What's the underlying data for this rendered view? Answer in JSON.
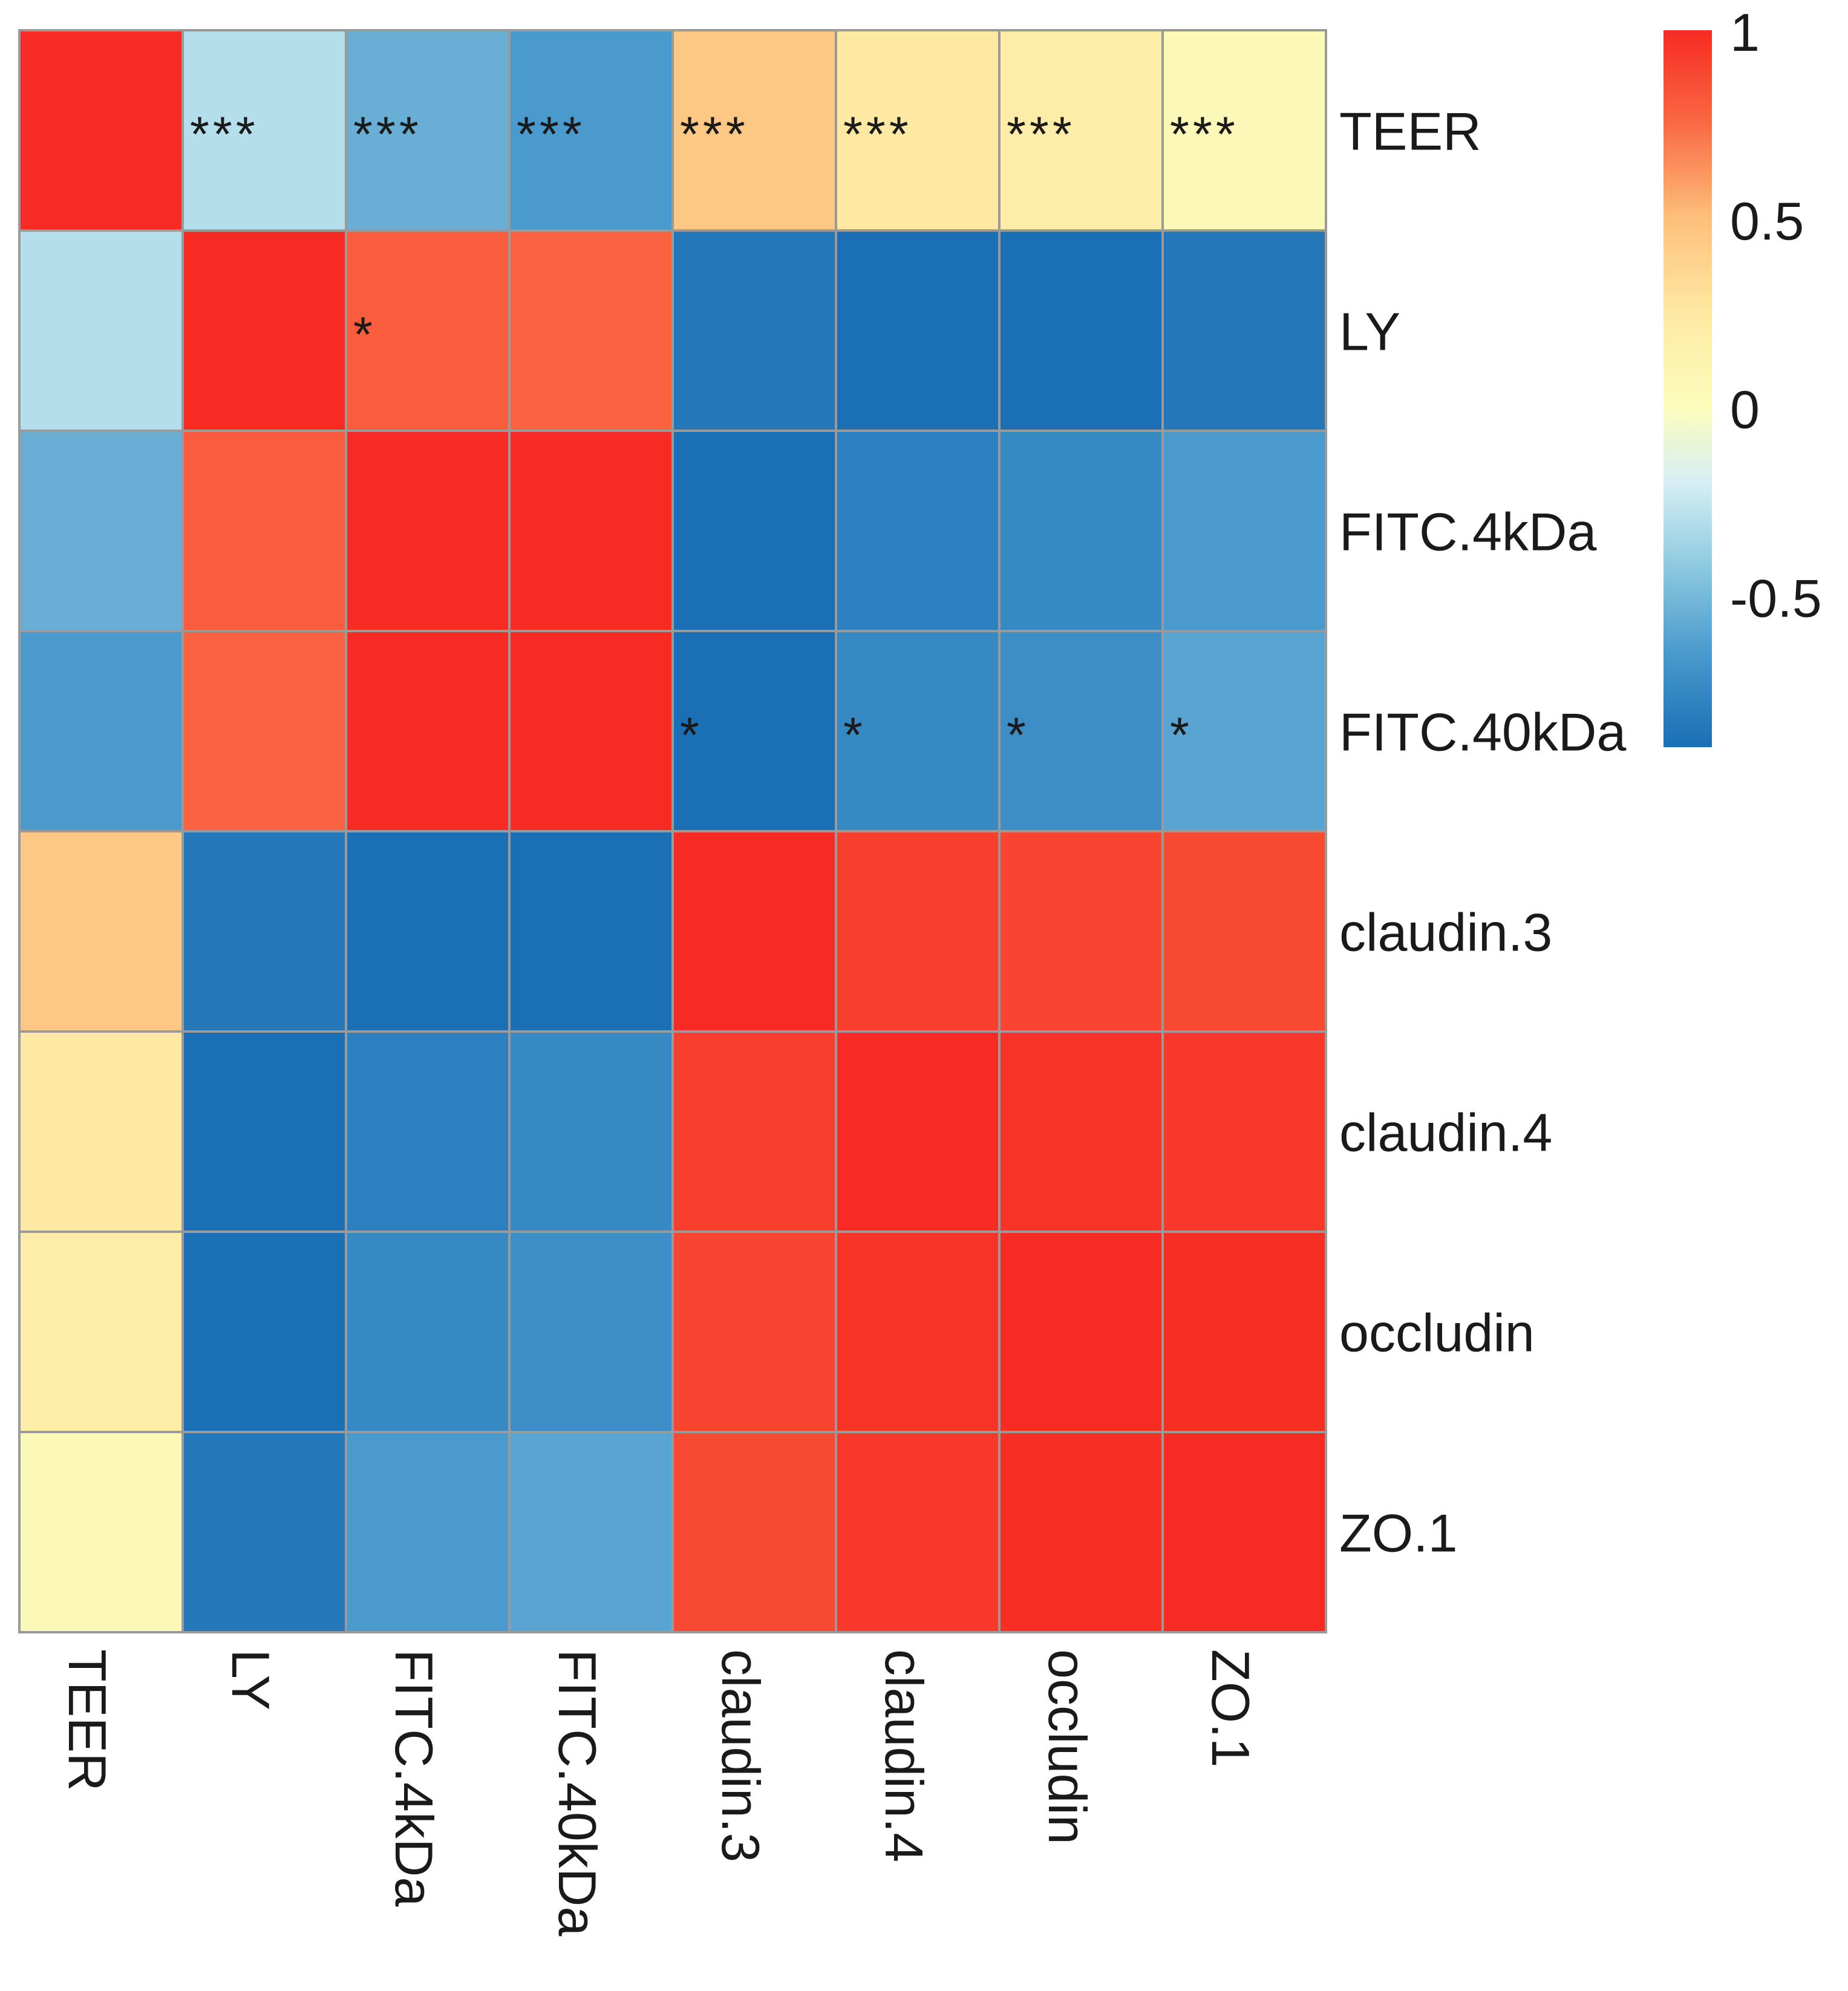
{
  "chart_data": {
    "type": "heatmap",
    "title": "",
    "variables": [
      "TEER",
      "LY",
      "FITC.4kDa",
      "FITC.40kDa",
      "claudin.3",
      "claudin.4",
      "occludin",
      "ZO.1"
    ],
    "row_labels": [
      "TEER",
      "LY",
      "FITC.4kDa",
      "FITC.40kDa",
      "claudin.3",
      "claudin.4",
      "occludin",
      "ZO.1"
    ],
    "col_labels": [
      "TEER",
      "LY",
      "FITC.4kDa",
      "FITC.40kDa",
      "claudin.3",
      "claudin.4",
      "occludin",
      "ZO.1"
    ],
    "values": [
      [
        1.0,
        -0.3,
        -0.55,
        -0.65,
        0.45,
        0.25,
        0.2,
        0.05
      ],
      [
        -0.3,
        1.0,
        0.8,
        0.78,
        -0.85,
        -0.95,
        -0.9,
        -0.85
      ],
      [
        -0.55,
        0.8,
        1.0,
        1.0,
        -0.95,
        -0.8,
        -0.75,
        -0.65
      ],
      [
        -0.65,
        0.78,
        1.0,
        1.0,
        -0.95,
        -0.75,
        -0.72,
        -0.6
      ],
      [
        0.45,
        -0.85,
        -0.95,
        -0.95,
        1.0,
        0.92,
        0.9,
        0.88
      ],
      [
        0.25,
        -0.95,
        -0.8,
        -0.75,
        0.92,
        1.0,
        0.97,
        0.95
      ],
      [
        0.2,
        -0.9,
        -0.75,
        -0.72,
        0.9,
        0.97,
        1.0,
        0.99
      ],
      [
        0.05,
        -0.85,
        -0.65,
        -0.6,
        0.88,
        0.95,
        0.99,
        1.0
      ]
    ],
    "annotations": [
      [
        "",
        "***",
        "***",
        "***",
        "***",
        "***",
        "***",
        "***"
      ],
      [
        "",
        "",
        "*",
        "",
        "",
        "",
        "",
        ""
      ],
      [
        "",
        "",
        "",
        "",
        "",
        "",
        "",
        ""
      ],
      [
        "",
        "",
        "",
        "",
        "*",
        "*",
        "*",
        "*"
      ],
      [
        "",
        "",
        "",
        "",
        "",
        "",
        "",
        ""
      ],
      [
        "",
        "",
        "",
        "",
        "",
        "",
        "",
        ""
      ],
      [
        "",
        "",
        "",
        "",
        "",
        "",
        "",
        ""
      ],
      [
        "",
        "",
        "",
        "",
        "",
        "",
        "",
        ""
      ]
    ],
    "colorbar": {
      "range": [
        -0.9,
        1.0
      ],
      "ticks": [
        1,
        0.5,
        0,
        -0.5
      ],
      "tick_labels": [
        "1",
        "0.5",
        "0",
        "-0.5"
      ],
      "stops": [
        {
          "value": -0.9,
          "color": "#1a6fb5"
        },
        {
          "value": -0.65,
          "color": "#4a9acd"
        },
        {
          "value": -0.4,
          "color": "#94cde2"
        },
        {
          "value": -0.2,
          "color": "#d6eef5"
        },
        {
          "value": 0.0,
          "color": "#fcfdbd"
        },
        {
          "value": 0.25,
          "color": "#fee9a3"
        },
        {
          "value": 0.5,
          "color": "#fdc07c"
        },
        {
          "value": 0.75,
          "color": "#fa6a45"
        },
        {
          "value": 1.0,
          "color": "#f72b23"
        }
      ]
    },
    "legend_position": "top-right",
    "grid_color": "#9a9a9a"
  }
}
